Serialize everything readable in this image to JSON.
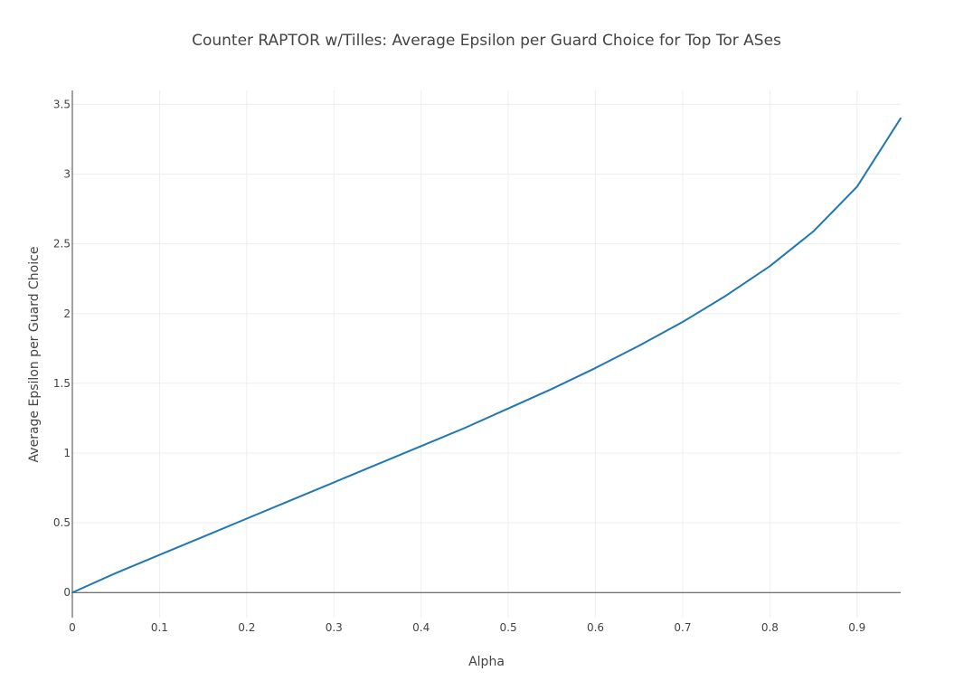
{
  "chart_data": {
    "type": "line",
    "title": "Counter RAPTOR w/Tilles: Average Epsilon per Guard Choice for Top Tor ASes",
    "xlabel": "Alpha",
    "ylabel": "Average Epsilon per Guard Choice",
    "xlim": [
      0,
      0.95
    ],
    "ylim": [
      -0.18,
      3.6
    ],
    "grid": true,
    "legend": "none",
    "x_ticks": [
      {
        "value": 0,
        "label": "0"
      },
      {
        "value": 0.1,
        "label": "0.1"
      },
      {
        "value": 0.2,
        "label": "0.2"
      },
      {
        "value": 0.3,
        "label": "0.3"
      },
      {
        "value": 0.4,
        "label": "0.4"
      },
      {
        "value": 0.5,
        "label": "0.5"
      },
      {
        "value": 0.6,
        "label": "0.6"
      },
      {
        "value": 0.7,
        "label": "0.7"
      },
      {
        "value": 0.8,
        "label": "0.8"
      },
      {
        "value": 0.9,
        "label": "0.9"
      }
    ],
    "y_ticks": [
      {
        "value": 0,
        "label": "0"
      },
      {
        "value": 0.5,
        "label": "0.5"
      },
      {
        "value": 1,
        "label": "1"
      },
      {
        "value": 1.5,
        "label": "1.5"
      },
      {
        "value": 2,
        "label": "2"
      },
      {
        "value": 2.5,
        "label": "2.5"
      },
      {
        "value": 3,
        "label": "3"
      },
      {
        "value": 3.5,
        "label": "3.5"
      }
    ],
    "series": [
      {
        "color": "#1f77b4",
        "x": [
          0,
          0.05,
          0.1,
          0.15,
          0.2,
          0.25,
          0.3,
          0.35,
          0.4,
          0.45,
          0.5,
          0.55,
          0.6,
          0.65,
          0.7,
          0.75,
          0.8,
          0.85,
          0.9,
          0.95
        ],
        "y": [
          0,
          0.14,
          0.27,
          0.4,
          0.53,
          0.66,
          0.79,
          0.92,
          1.05,
          1.18,
          1.32,
          1.46,
          1.61,
          1.77,
          1.94,
          2.13,
          2.34,
          2.59,
          2.91,
          3.4
        ]
      }
    ]
  }
}
